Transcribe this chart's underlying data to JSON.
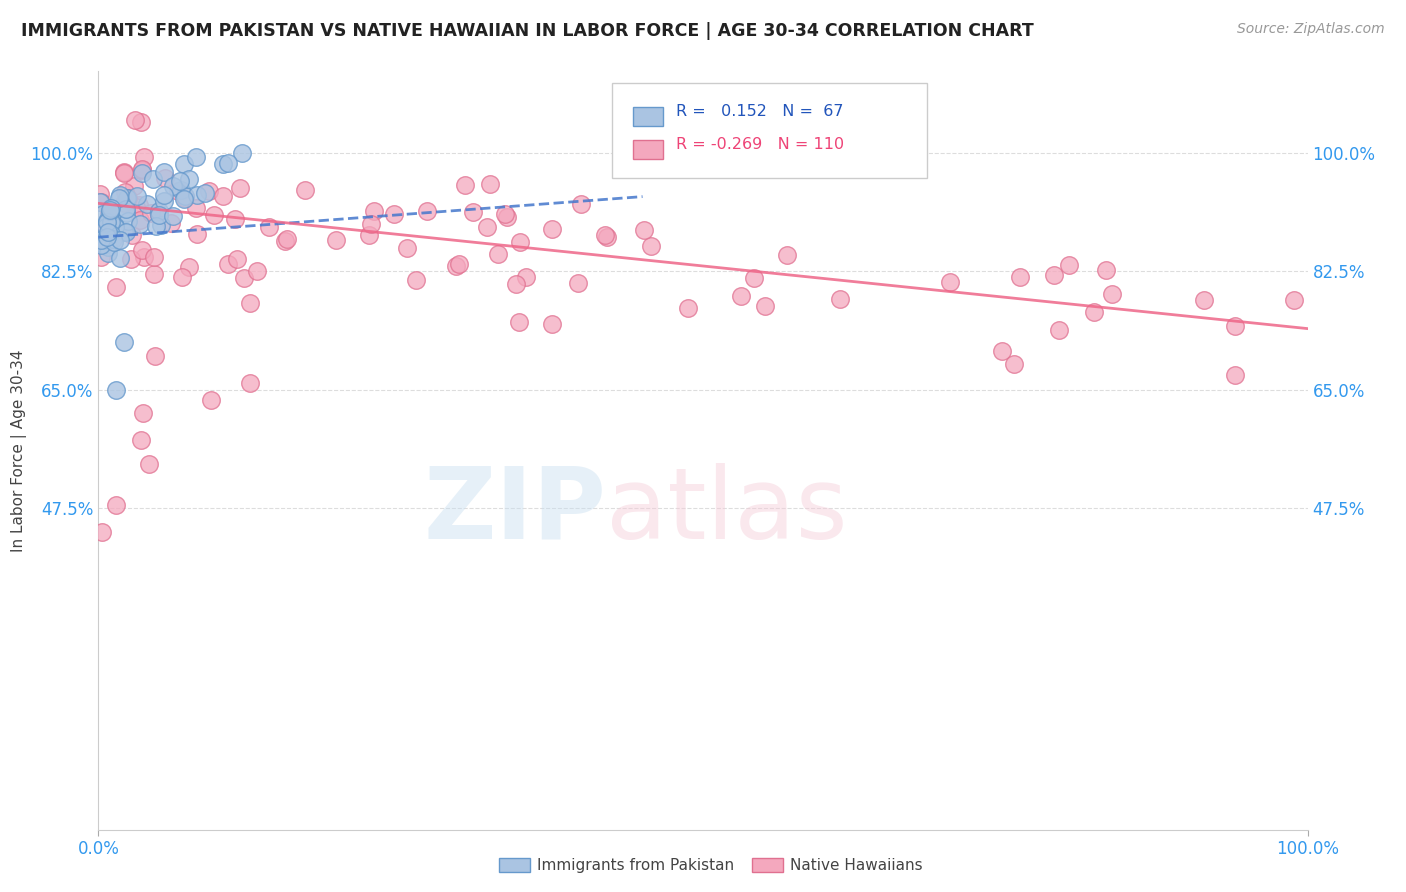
{
  "title": "IMMIGRANTS FROM PAKISTAN VS NATIVE HAWAIIAN IN LABOR FORCE | AGE 30-34 CORRELATION CHART",
  "source": "Source: ZipAtlas.com",
  "ylabel": "In Labor Force | Age 30-34",
  "legend_label1": "Immigrants from Pakistan",
  "legend_label2": "Native Hawaiians",
  "r1": "0.152",
  "n1": "67",
  "r2": "-0.269",
  "n2": "110",
  "color_pakistan": "#aac4e2",
  "color_hawaii": "#f4a8be",
  "color_pakistan_edge": "#6699cc",
  "color_hawaii_edge": "#e07090",
  "color_pakistan_line": "#4477cc",
  "color_hawaii_line": "#ee6688",
  "xlim": [
    0.0,
    1.0
  ],
  "ylim": [
    0.0,
    1.12
  ],
  "ytick_values": [
    0.475,
    0.65,
    0.825,
    1.0
  ],
  "ytick_labels": [
    "47.5%",
    "65.0%",
    "82.5%",
    "100.0%"
  ],
  "grid_color": "#dddddd",
  "pak_trend_x": [
    0.0,
    0.45
  ],
  "pak_trend_y": [
    0.875,
    0.935
  ],
  "haw_trend_x": [
    0.0,
    1.0
  ],
  "haw_trend_y": [
    0.925,
    0.74
  ]
}
